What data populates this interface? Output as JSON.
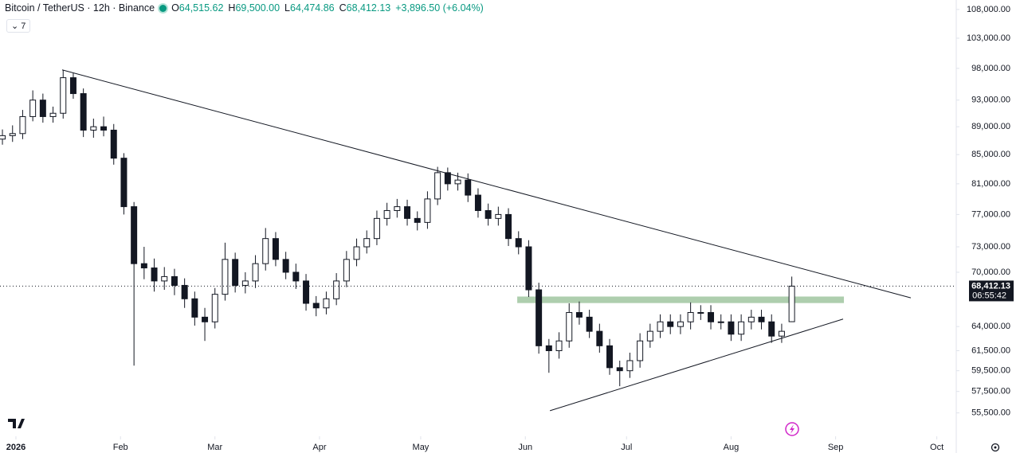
{
  "header": {
    "symbol": "Bitcoin / TetherUS · 12h · Binance",
    "ohlc": [
      {
        "key": "O",
        "value": "64,515.62"
      },
      {
        "key": "H",
        "value": "69,500.00"
      },
      {
        "key": "L",
        "value": "64,474.86"
      },
      {
        "key": "C",
        "value": "68,412.13"
      }
    ],
    "change": "+3,896.50 (+6.04%)",
    "indicator": "7"
  },
  "chart_data": {
    "type": "candlestick",
    "log_scale": true,
    "grid": false,
    "series": [
      {
        "up_color": "#ffffff",
        "down_color": "#131722",
        "open": [
          87200,
          87700,
          88000,
          90500,
          93000,
          90500,
          91000,
          96500,
          94000,
          88500,
          89000,
          88500,
          84500,
          78000,
          71000,
          70500,
          69000,
          69500,
          68500,
          67000,
          65000,
          64500,
          67500,
          71500,
          68500,
          69000,
          71000,
          74000,
          71500,
          70000,
          69000,
          66500,
          66000,
          67000,
          69000,
          71500,
          73000,
          74000,
          76500,
          77500,
          78000,
          76500,
          76000,
          79000,
          82500,
          81000,
          81500,
          79500,
          77500,
          76500,
          77000,
          74000,
          73000,
          68000,
          62000,
          61500,
          62500,
          65500,
          65000,
          63500,
          62000,
          59800,
          59500,
          60500,
          62500,
          63500,
          64500,
          64000,
          64500,
          65500,
          65500,
          64500,
          64500,
          63200,
          64500,
          65000,
          64500,
          63000,
          64515.62
        ],
        "high": [
          88600,
          89200,
          91500,
          94500,
          94000,
          92000,
          97700,
          97200,
          94800,
          90200,
          90500,
          89400,
          85200,
          78600,
          73000,
          71600,
          70600,
          70400,
          69300,
          67800,
          66000,
          68200,
          73500,
          72300,
          70000,
          72000,
          75300,
          74800,
          72400,
          71000,
          69800,
          67300,
          67800,
          69900,
          72500,
          74000,
          75000,
          77500,
          78500,
          79000,
          78900,
          77400,
          80000,
          83300,
          83200,
          82500,
          82400,
          80400,
          78400,
          78000,
          77800,
          74900,
          73800,
          68800,
          62700,
          63400,
          66500,
          66700,
          65800,
          64300,
          62700,
          60500,
          61300,
          63300,
          64300,
          65300,
          65300,
          65300,
          66600,
          66300,
          66300,
          65300,
          65300,
          65300,
          65800,
          65800,
          65300,
          64300,
          69500
        ],
        "low": [
          86400,
          86800,
          87200,
          89800,
          89600,
          89600,
          90200,
          93200,
          87500,
          87400,
          87600,
          83600,
          77000,
          60000,
          69200,
          67800,
          68000,
          67400,
          66000,
          64100,
          62500,
          63800,
          66800,
          67700,
          67600,
          68200,
          70200,
          70700,
          69200,
          68100,
          65700,
          65100,
          65300,
          66300,
          68300,
          70700,
          72200,
          73200,
          75600,
          76600,
          75600,
          75000,
          75200,
          78200,
          80100,
          80100,
          78600,
          76600,
          75600,
          75600,
          73100,
          72100,
          67200,
          61200,
          59300,
          60700,
          61800,
          64200,
          62800,
          61300,
          59100,
          58000,
          58800,
          59800,
          61800,
          62800,
          63200,
          63200,
          63700,
          64700,
          63700,
          63700,
          62500,
          62500,
          63700,
          63700,
          62300,
          62300,
          64474.86
        ],
        "close": [
          87700,
          88000,
          90500,
          93000,
          90500,
          91000,
          96500,
          94000,
          88500,
          89000,
          88500,
          84500,
          78000,
          71000,
          70500,
          69000,
          69500,
          68500,
          67000,
          65000,
          64500,
          67500,
          71500,
          68500,
          69000,
          71000,
          74000,
          71500,
          70000,
          69000,
          66500,
          66000,
          67000,
          69000,
          71500,
          73000,
          74000,
          76500,
          77500,
          78000,
          76500,
          76000,
          79000,
          82500,
          81000,
          81500,
          79500,
          77500,
          76500,
          77000,
          74000,
          73000,
          68000,
          62000,
          61500,
          62500,
          65500,
          65000,
          63500,
          62000,
          59800,
          59500,
          60500,
          62500,
          63500,
          64500,
          64000,
          64500,
          65500,
          65500,
          64500,
          64500,
          63200,
          64500,
          65000,
          64500,
          63000,
          63500,
          68412.13
        ]
      }
    ],
    "ylim": [
      53400,
      109700
    ],
    "yticks": [
      {
        "value": 108000,
        "label": "108,000.00"
      },
      {
        "value": 103000,
        "label": "103,000.00"
      },
      {
        "value": 98000,
        "label": "98,000.00"
      },
      {
        "value": 93000,
        "label": "93,000.00"
      },
      {
        "value": 89000,
        "label": "89,000.00"
      },
      {
        "value": 85000,
        "label": "85,000.00"
      },
      {
        "value": 81000,
        "label": "81,000.00"
      },
      {
        "value": 77000,
        "label": "77,000.00"
      },
      {
        "value": 73000,
        "label": "73,000.00"
      },
      {
        "value": 70000,
        "label": "70,000.00"
      },
      {
        "value": 64000,
        "label": "64,000.00"
      },
      {
        "value": 61500,
        "label": "61,500.00"
      },
      {
        "value": 59500,
        "label": "59,500.00"
      },
      {
        "value": 57500,
        "label": "57,500.00"
      },
      {
        "value": 55500,
        "label": "55,500.00"
      }
    ],
    "xlim": [
      -0.24,
      94.25
    ],
    "xticks": [
      {
        "value": 1.333,
        "label": "2026"
      },
      {
        "value": 11.667,
        "label": "Feb"
      },
      {
        "value": 21,
        "label": "Mar"
      },
      {
        "value": 31.33,
        "label": "Apr"
      },
      {
        "value": 41.33,
        "label": "May"
      },
      {
        "value": 51.67,
        "label": "Jun"
      },
      {
        "value": 61.67,
        "label": "Jul"
      },
      {
        "value": 72,
        "label": "Aug"
      },
      {
        "value": 82.33,
        "label": "Sep"
      },
      {
        "value": 92.33,
        "label": "Oct"
      }
    ],
    "trendlines": [
      {
        "points": [
          [
            5.9,
            97750
          ],
          [
            89.76,
            67100
          ]
        ],
        "color": "#131722"
      },
      {
        "points": [
          [
            54.1,
            55700
          ],
          [
            83.07,
            64800
          ]
        ],
        "color": "#131722"
      }
    ],
    "zone": {
      "x": [
        50.87,
        83.15
      ],
      "price": [
        66530,
        67250
      ],
      "color": "#a5c9a5"
    },
    "last_price": {
      "label": "68,412.13",
      "countdown": "06:55:42"
    }
  }
}
